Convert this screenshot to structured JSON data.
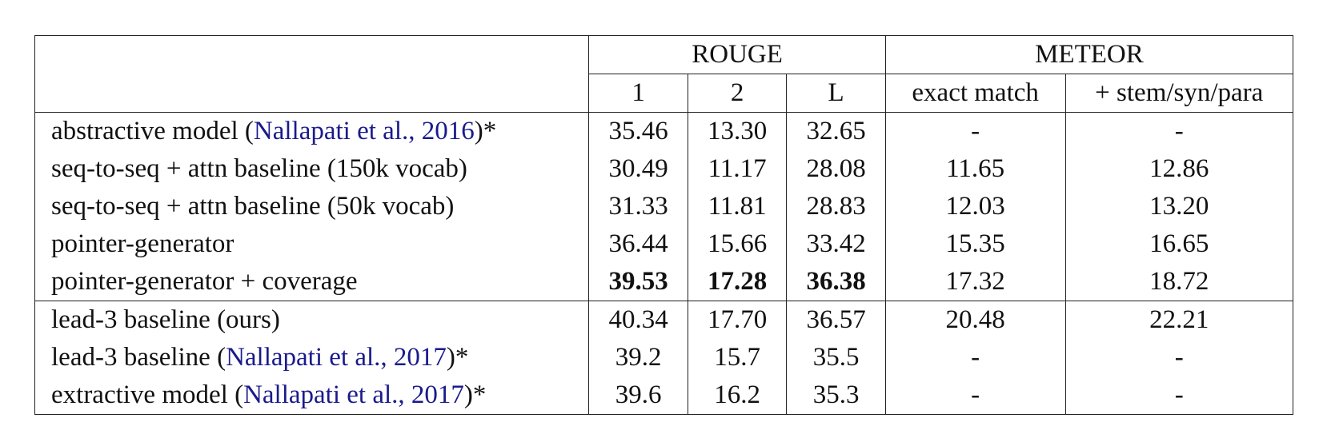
{
  "header": {
    "rouge": "ROUGE",
    "meteor": "METEOR",
    "r1": "1",
    "r2": "2",
    "rl": "L",
    "exact": "exact match",
    "stem": "+ stem/syn/para"
  },
  "rows": [
    {
      "pre": "abstractive model (",
      "cite": "Nallapati et al.,",
      "mid": " ",
      "year": "2016",
      "post": ")*",
      "r1": "35.46",
      "r2": "13.30",
      "rl": "32.65",
      "exact": "-",
      "stem": "-"
    },
    {
      "pre": "seq-to-seq + attn baseline (150k vocab)",
      "r1": "30.49",
      "r2": "11.17",
      "rl": "28.08",
      "exact": "11.65",
      "stem": "12.86"
    },
    {
      "pre": "seq-to-seq + attn baseline (50k vocab)",
      "r1": "31.33",
      "r2": "11.81",
      "rl": "28.83",
      "exact": "12.03",
      "stem": "13.20"
    },
    {
      "pre": "pointer-generator",
      "r1": "36.44",
      "r2": "15.66",
      "rl": "33.42",
      "exact": "15.35",
      "stem": "16.65"
    },
    {
      "pre": "pointer-generator + coverage",
      "r1": "39.53",
      "r2": "17.28",
      "rl": "36.38",
      "exact": "17.32",
      "stem": "18.72"
    },
    {
      "pre": "lead-3 baseline (ours)",
      "r1": "40.34",
      "r2": "17.70",
      "rl": "36.57",
      "exact": "20.48",
      "stem": "22.21"
    },
    {
      "pre": "lead-3 baseline (",
      "cite": "Nallapati et al.,",
      "mid": " ",
      "year": "2017",
      "post": ")*",
      "r1": "39.2",
      "r2": "15.7",
      "rl": "35.5",
      "exact": "-",
      "stem": "-"
    },
    {
      "pre": "extractive model (",
      "cite": "Nallapati et al.,",
      "mid": " ",
      "year": "2017",
      "post": ")*",
      "r1": "39.6",
      "r2": "16.2",
      "rl": "35.3",
      "exact": "-",
      "stem": "-"
    }
  ]
}
